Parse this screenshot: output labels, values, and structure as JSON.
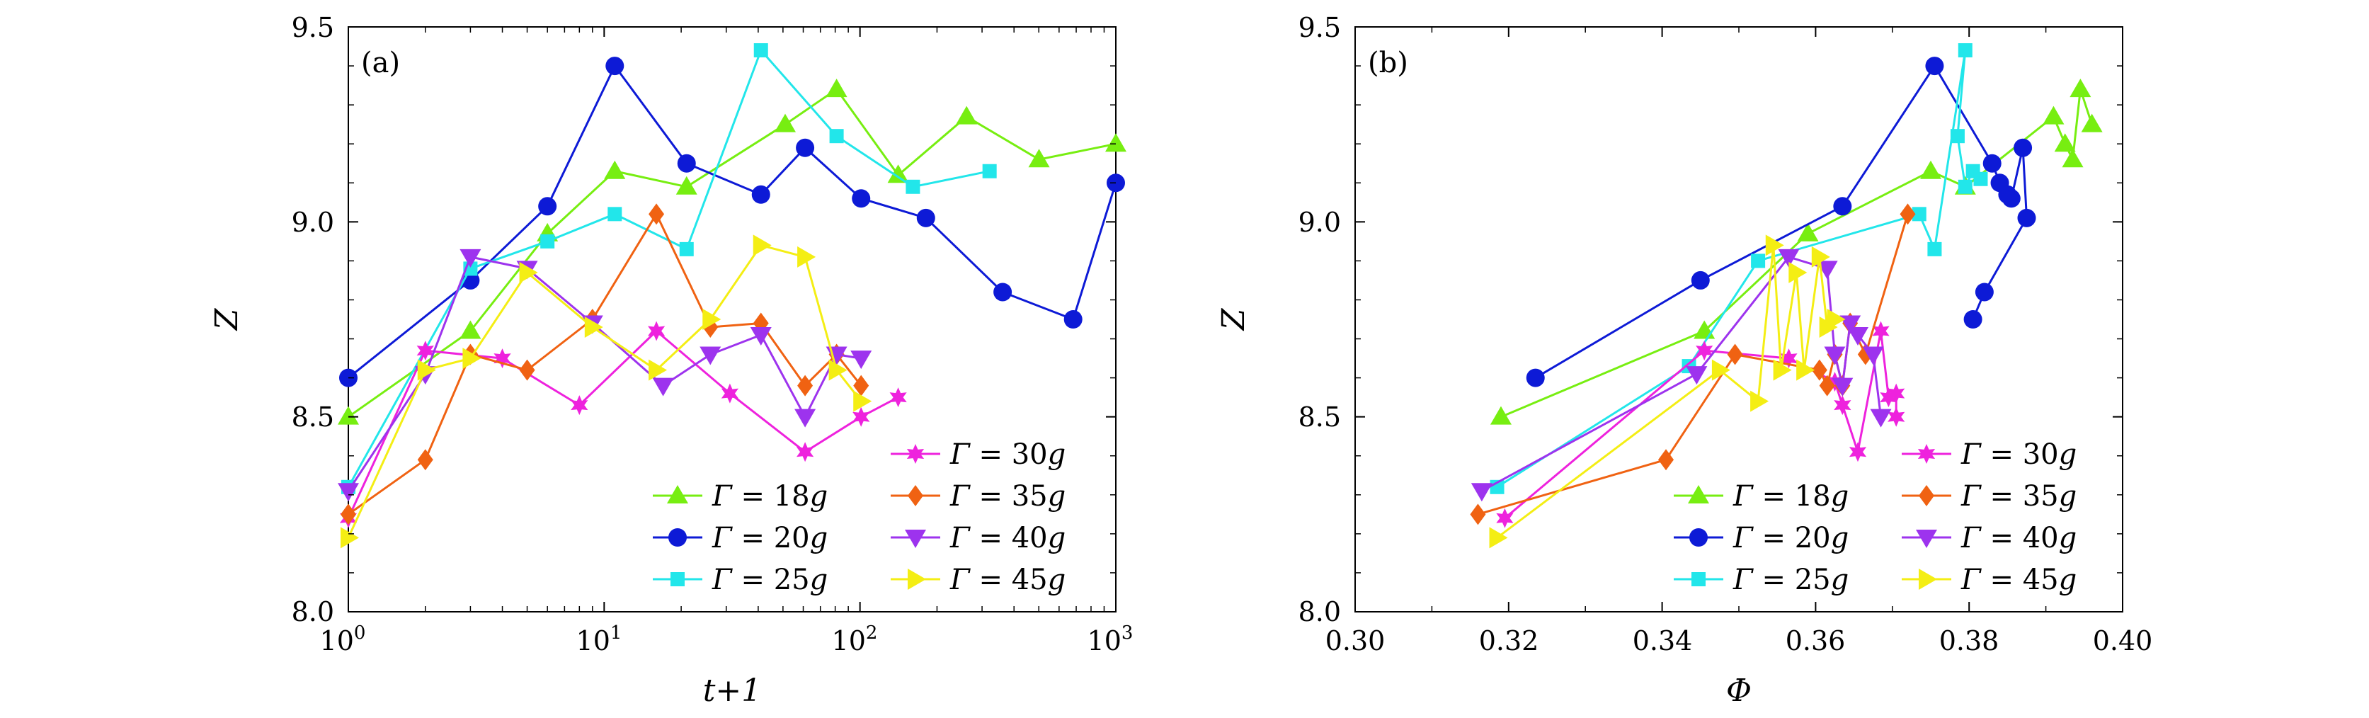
{
  "chart_data": [
    {
      "type": "line",
      "panel_label": "(a)",
      "xscale": "log",
      "xlabel": "t+1",
      "ylabel": "Z",
      "xlim": [
        1,
        1000
      ],
      "ylim": [
        8.0,
        9.5
      ],
      "xticks": [
        1,
        10,
        100,
        1000
      ],
      "xtick_labels": [
        {
          "base": "10",
          "exp": "0"
        },
        {
          "base": "10",
          "exp": "1"
        },
        {
          "base": "10",
          "exp": "2"
        },
        {
          "base": "10",
          "exp": "3"
        }
      ],
      "yticks": [
        8.0,
        8.5,
        9.0,
        9.5
      ],
      "ytick_labels": [
        "8.0",
        "8.5",
        "9.0",
        "9.5"
      ],
      "series": [
        {
          "name": "Γ = 18g",
          "x": [
            1,
            3,
            6,
            11,
            21,
            51,
            81,
            141,
            261,
            501,
            1000
          ],
          "y": [
            8.5,
            8.72,
            8.97,
            9.13,
            9.09,
            9.25,
            9.34,
            9.12,
            9.27,
            9.16,
            9.2
          ]
        },
        {
          "name": "Γ = 20g",
          "x": [
            1,
            3,
            6,
            11,
            21,
            41,
            61,
            101,
            181,
            361,
            681,
            1000
          ],
          "y": [
            8.6,
            8.85,
            9.04,
            9.4,
            9.15,
            9.07,
            9.19,
            9.06,
            9.01,
            8.82,
            8.75,
            9.1
          ]
        },
        {
          "name": "Γ = 25g",
          "x": [
            1,
            3,
            6,
            11,
            21,
            41,
            81,
            161,
            321
          ],
          "y": [
            8.32,
            8.88,
            8.95,
            9.02,
            8.93,
            9.44,
            9.22,
            9.09,
            9.13
          ]
        },
        {
          "name": "Γ = 30g",
          "x": [
            1,
            2,
            4,
            8,
            16,
            31,
            61,
            101,
            141
          ],
          "y": [
            8.24,
            8.67,
            8.65,
            8.53,
            8.72,
            8.56,
            8.41,
            8.5,
            8.55
          ]
        },
        {
          "name": "Γ = 35g",
          "x": [
            1,
            2,
            3,
            5,
            9,
            16,
            26,
            41,
            61,
            81,
            101
          ],
          "y": [
            8.25,
            8.39,
            8.66,
            8.62,
            8.75,
            9.02,
            8.73,
            8.74,
            8.58,
            8.66,
            8.58
          ]
        },
        {
          "name": "Γ = 40g",
          "x": [
            1,
            2,
            3,
            5,
            9,
            17,
            26,
            41,
            61,
            81,
            101
          ],
          "y": [
            8.31,
            8.61,
            8.91,
            8.88,
            8.74,
            8.58,
            8.66,
            8.71,
            8.5,
            8.66,
            8.65
          ]
        },
        {
          "name": "Γ = 45g",
          "x": [
            1,
            2,
            3,
            5,
            9,
            16,
            26,
            41,
            61,
            81,
            101
          ],
          "y": [
            8.19,
            8.62,
            8.65,
            8.87,
            8.73,
            8.62,
            8.75,
            8.94,
            8.91,
            8.62,
            8.54
          ]
        }
      ]
    },
    {
      "type": "scatter",
      "panel_label": "(b)",
      "xlabel": "Φ",
      "ylabel": "Z",
      "xlim": [
        0.3,
        0.4
      ],
      "ylim": [
        8.0,
        9.5
      ],
      "xticks": [
        0.3,
        0.32,
        0.34,
        0.36,
        0.38,
        0.4
      ],
      "xtick_labels": [
        "0.30",
        "0.32",
        "0.34",
        "0.36",
        "0.38",
        "0.40"
      ],
      "yticks": [
        8.0,
        8.5,
        9.0,
        9.5
      ],
      "ytick_labels": [
        "8.0",
        "8.5",
        "9.0",
        "9.5"
      ],
      "series": [
        {
          "name": "Γ = 18g",
          "x": [
            0.319,
            0.3455,
            0.359,
            0.375,
            0.3795,
            0.391,
            0.3925,
            0.3935,
            0.3945,
            0.396
          ],
          "y": [
            8.5,
            8.72,
            8.97,
            9.13,
            9.09,
            9.27,
            9.2,
            9.16,
            9.34,
            9.25
          ]
        },
        {
          "name": "Γ = 20g",
          "x": [
            0.3235,
            0.345,
            0.3635,
            0.3755,
            0.383,
            0.384,
            0.385,
            0.3855,
            0.387,
            0.3875,
            0.382,
            0.3805
          ],
          "y": [
            8.6,
            8.85,
            9.04,
            9.4,
            9.15,
            9.1,
            9.07,
            9.06,
            9.19,
            9.01,
            8.82,
            8.75
          ]
        },
        {
          "name": "Γ = 25g",
          "x": [
            0.3185,
            0.3435,
            0.3525,
            0.3735,
            0.3755,
            0.3795,
            0.3785,
            0.3795,
            0.3805,
            0.3815
          ],
          "y": [
            8.32,
            8.63,
            8.9,
            9.02,
            8.93,
            9.44,
            9.22,
            9.09,
            9.13,
            9.11
          ]
        },
        {
          "name": "Γ = 30g",
          "x": [
            0.3195,
            0.3455,
            0.3565,
            0.3625,
            0.3635,
            0.3655,
            0.3685,
            0.3695,
            0.3705,
            0.3705
          ],
          "y": [
            8.24,
            8.67,
            8.65,
            8.59,
            8.53,
            8.41,
            8.72,
            8.55,
            8.56,
            8.5
          ]
        },
        {
          "name": "Γ = 35g",
          "x": [
            0.316,
            0.3405,
            0.3495,
            0.3605,
            0.3615,
            0.3625,
            0.3635,
            0.3645,
            0.3665,
            0.372
          ],
          "y": [
            8.25,
            8.39,
            8.66,
            8.62,
            8.58,
            8.66,
            8.58,
            8.74,
            8.66,
            9.02
          ]
        },
        {
          "name": "Γ = 40g",
          "x": [
            0.3165,
            0.3445,
            0.3565,
            0.3615,
            0.3625,
            0.3635,
            0.3645,
            0.3655,
            0.3675,
            0.3685
          ],
          "y": [
            8.31,
            8.61,
            8.91,
            8.88,
            8.66,
            8.58,
            8.74,
            8.71,
            8.66,
            8.5
          ]
        },
        {
          "name": "Γ = 45g",
          "x": [
            0.3185,
            0.3475,
            0.3525,
            0.3545,
            0.3555,
            0.3575,
            0.3585,
            0.3605,
            0.3615,
            0.3625
          ],
          "y": [
            8.19,
            8.62,
            8.54,
            8.94,
            8.62,
            8.87,
            8.62,
            8.91,
            8.73,
            8.75
          ]
        }
      ]
    }
  ],
  "legend": {
    "placement": "bottom-right",
    "entries": [
      {
        "name": "Γ = 18g",
        "prefix": "Γ",
        "text": " = 18",
        "unit": "g",
        "color": "#77ee11",
        "marker": "triangle-up"
      },
      {
        "name": "Γ = 20g",
        "prefix": "Γ",
        "text": " = 20",
        "unit": "g",
        "color": "#0d1ad6",
        "marker": "circle"
      },
      {
        "name": "Γ = 25g",
        "prefix": "Γ",
        "text": " = 25",
        "unit": "g",
        "color": "#22e6ea",
        "marker": "square"
      },
      {
        "name": "Γ = 30g",
        "prefix": "Γ",
        "text": " = 30",
        "unit": "g",
        "color": "#ee22dd",
        "marker": "star"
      },
      {
        "name": "Γ = 35g",
        "prefix": "Γ",
        "text": " = 35",
        "unit": "g",
        "color": "#f06212",
        "marker": "diamond"
      },
      {
        "name": "Γ = 40g",
        "prefix": "Γ",
        "text": " = 40",
        "unit": "g",
        "color": "#9d33ee",
        "marker": "triangle-down"
      },
      {
        "name": "Γ = 45g",
        "prefix": "Γ",
        "text": " = 45",
        "unit": "g",
        "color": "#f4ee14",
        "marker": "triangle-right"
      }
    ]
  }
}
